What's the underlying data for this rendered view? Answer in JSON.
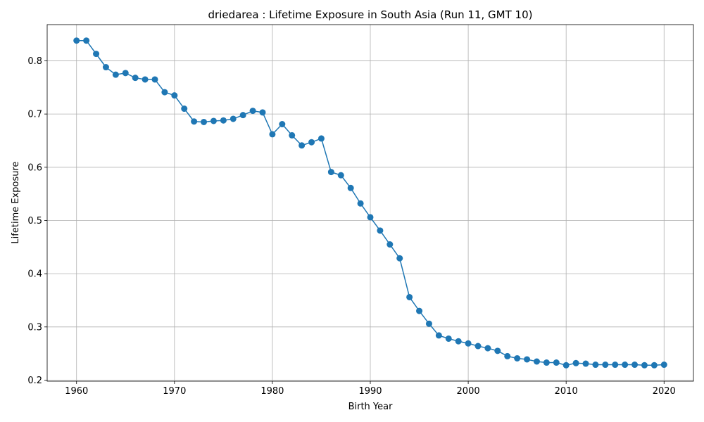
{
  "chart_data": {
    "type": "line",
    "title": "driedarea : Lifetime Exposure in South Asia (Run 11, GMT 10)",
    "xlabel": "Birth Year",
    "ylabel": "Lifetime Exposure",
    "xlim": [
      1957,
      2023
    ],
    "ylim": [
      0.198,
      0.868
    ],
    "xticks": [
      1960,
      1970,
      1980,
      1990,
      2000,
      2010,
      2020
    ],
    "yticks": [
      0.2,
      0.3,
      0.4,
      0.5,
      0.6,
      0.7,
      0.8
    ],
    "ytick_labels": [
      "0.2",
      "0.3",
      "0.4",
      "0.5",
      "0.6",
      "0.7",
      "0.8"
    ],
    "grid": true,
    "line_color": "#1f77b4",
    "marker": "circle",
    "series": [
      {
        "x": [
          1960,
          1961,
          1962,
          1963,
          1964,
          1965,
          1966,
          1967,
          1968,
          1969,
          1970,
          1971,
          1972,
          1973,
          1974,
          1975,
          1976,
          1977,
          1978,
          1979,
          1980,
          1981,
          1982,
          1983,
          1984,
          1985,
          1986,
          1987,
          1988,
          1989,
          1990,
          1991,
          1992,
          1993,
          1994,
          1995,
          1996,
          1997,
          1998,
          1999,
          2000,
          2001,
          2002,
          2003,
          2004,
          2005,
          2006,
          2007,
          2008,
          2009,
          2010,
          2011,
          2012,
          2013,
          2014,
          2015,
          2016,
          2017,
          2018,
          2019,
          2020
        ],
        "y": [
          0.838,
          0.838,
          0.813,
          0.788,
          0.774,
          0.777,
          0.768,
          0.765,
          0.765,
          0.741,
          0.735,
          0.71,
          0.686,
          0.685,
          0.687,
          0.688,
          0.691,
          0.698,
          0.706,
          0.703,
          0.662,
          0.681,
          0.66,
          0.641,
          0.647,
          0.654,
          0.591,
          0.585,
          0.561,
          0.532,
          0.506,
          0.481,
          0.455,
          0.429,
          0.356,
          0.33,
          0.306,
          0.284,
          0.278,
          0.273,
          0.269,
          0.264,
          0.26,
          0.255,
          0.245,
          0.241,
          0.239,
          0.235,
          0.233,
          0.233,
          0.228,
          0.232,
          0.231,
          0.229,
          0.229,
          0.229,
          0.229,
          0.229,
          0.228,
          0.228,
          0.229
        ]
      }
    ]
  }
}
